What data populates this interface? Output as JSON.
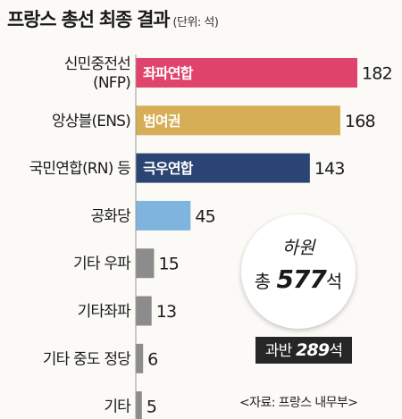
{
  "chart_data": {
    "type": "bar",
    "orientation": "horizontal",
    "title": "프랑스 총선 최종 결과",
    "unit": "(단위: 석)",
    "categories": [
      [
        "신민중전선",
        "(NFP)"
      ],
      [
        "앙상블(ENS)"
      ],
      [
        "국민연합(RN) 등"
      ],
      [
        "공화당"
      ],
      [
        "기타 우파"
      ],
      [
        "기타좌파"
      ],
      [
        "기타 중도 정당"
      ],
      [
        "기타"
      ]
    ],
    "values": [
      182,
      168,
      143,
      45,
      15,
      13,
      6,
      5
    ],
    "value_labels": [
      "182",
      "168",
      "143",
      "45",
      "15",
      "13",
      "6",
      "5"
    ],
    "alliance_labels": [
      "좌파연합",
      "범여권",
      "극우연합",
      "",
      "",
      "",
      "",
      ""
    ],
    "colors": [
      "#e0436b",
      "#d6ae55",
      "#2c4474",
      "#7fb4de",
      "#8c8c8c",
      "#8c8c8c",
      "#8c8c8c",
      "#8c8c8c"
    ],
    "xlim": [
      0,
      200
    ],
    "grid": false,
    "legend": "none",
    "total_box": {
      "line1": "하원",
      "prefix": "총",
      "number": "577",
      "suffix": "석"
    },
    "majority_box": {
      "prefix": "과반",
      "number": "289",
      "suffix": "석"
    }
  },
  "source": "<자료: 프랑스 내무부>"
}
